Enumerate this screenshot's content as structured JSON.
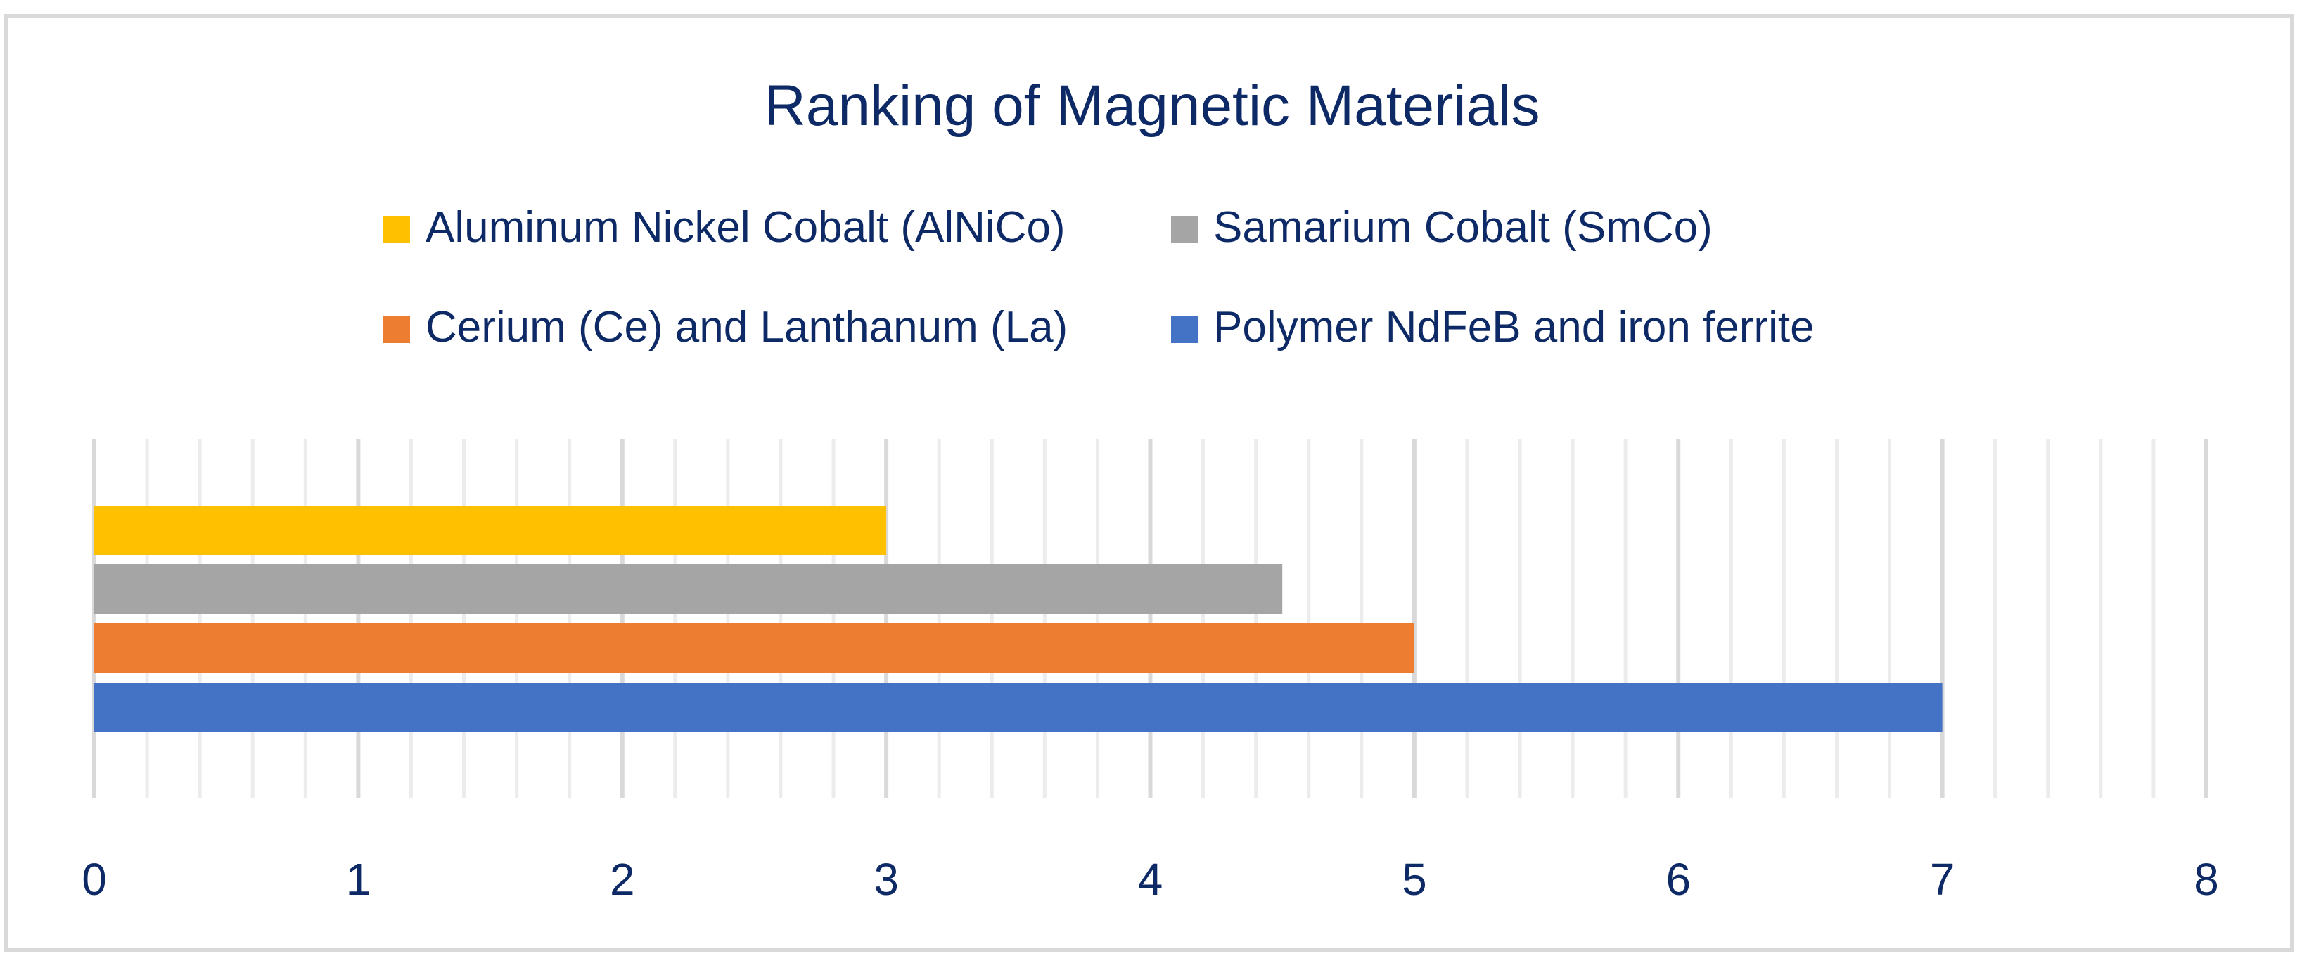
{
  "chart_data": {
    "type": "bar",
    "orientation": "horizontal",
    "title": "Ranking of Magnetic Materials",
    "xlabel": "",
    "ylabel": "",
    "xlim": [
      0,
      8
    ],
    "x_ticks": [
      0,
      1,
      2,
      3,
      4,
      5,
      6,
      7,
      8
    ],
    "x_ticks_labels": [
      "0",
      "1",
      "2",
      "3",
      "4",
      "5",
      "6",
      "7",
      "8"
    ],
    "minor_gridlines_per_unit": 5,
    "grid": true,
    "legend_position": "top",
    "series": [
      {
        "name": "Aluminum Nickel Cobalt (AlNiCo)",
        "value": 3,
        "color": "#ffc000"
      },
      {
        "name": "Samarium Cobalt (SmCo)",
        "value": 4.5,
        "color": "#a5a5a5"
      },
      {
        "name": "Cerium (Ce) and Lanthanum (La)",
        "value": 5,
        "color": "#ed7d31"
      },
      {
        "name": "Polymer NdFeB and iron ferrite",
        "value": 7,
        "color": "#4472c4"
      }
    ],
    "colors": {
      "text": "#0e2a66",
      "major_grid": "#d9d9d9",
      "minor_grid": "#ececec",
      "frame": "#d9d9d9"
    }
  }
}
